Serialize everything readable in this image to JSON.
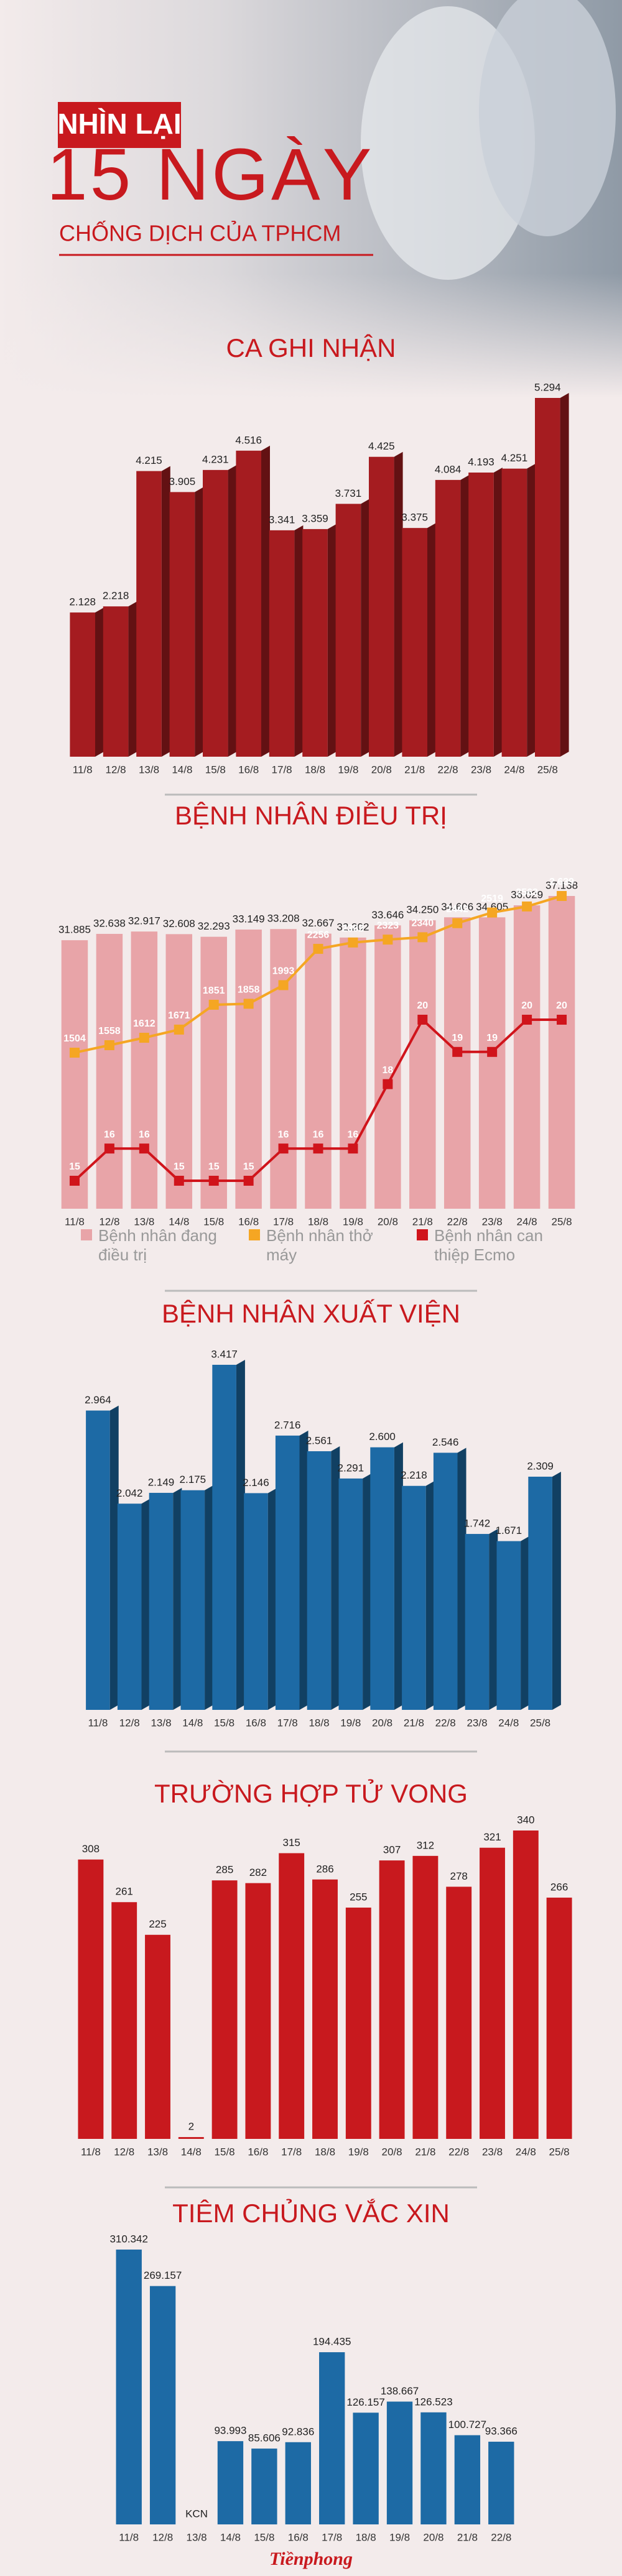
{
  "header": {
    "kicker": "NHÌN LẠI",
    "title": "15 NGÀY",
    "subtitle": "CHỐNG DỊCH CỦA TPHCM"
  },
  "chart_data": [
    {
      "type": "bar",
      "title": "CA GHI NHẬN",
      "color": "#a51c20",
      "categories": [
        "11/8",
        "12/8",
        "13/8",
        "14/8",
        "15/8",
        "16/8",
        "17/8",
        "18/8",
        "19/8",
        "20/8",
        "21/8",
        "22/8",
        "23/8",
        "24/8",
        "25/8"
      ],
      "values": [
        2128,
        2218,
        4215,
        3905,
        4231,
        4516,
        3341,
        3359,
        3731,
        4425,
        3375,
        4084,
        4193,
        4251,
        5294
      ],
      "value_labels": [
        "2.128",
        "2.218",
        "4.215",
        "3.905",
        "4.231",
        "4.516",
        "3.341",
        "3.359",
        "3.731",
        "4.425",
        "3.375",
        "4.084",
        "4.193",
        "4.251",
        "5.294"
      ]
    },
    {
      "type": "combo",
      "title": "BỆNH NHÂN ĐIỀU TRỊ",
      "categories": [
        "11/8",
        "12/8",
        "13/8",
        "14/8",
        "15/8",
        "16/8",
        "17/8",
        "18/8",
        "19/8",
        "20/8",
        "21/8",
        "22/8",
        "23/8",
        "24/8",
        "25/8"
      ],
      "series": [
        {
          "name": "Bệnh nhân đang điều trị",
          "type": "bar",
          "color": "#e8a4a8",
          "values": [
            31885,
            32638,
            32917,
            32608,
            32293,
            33149,
            33208,
            32667,
            32202,
            33646,
            34250,
            34606,
            34605,
            36029,
            37138
          ],
          "value_labels": [
            "31.885",
            "32.638",
            "32.917",
            "32.608",
            "32.293",
            "33.149",
            "33.208",
            "32.667",
            "32.202",
            "33.646",
            "34.250",
            "34.606",
            "34.605",
            "36.029",
            "37.138"
          ]
        },
        {
          "name": "Bệnh nhân thở máy",
          "type": "line",
          "color": "#f5a623",
          "values": [
            1504,
            1558,
            1612,
            1671,
            1851,
            1858,
            1993,
            2256,
            2302,
            2323,
            2340,
            2442,
            2519,
            2563,
            2639
          ],
          "value_labels": [
            "1504",
            "1558",
            "1612",
            "1671",
            "1851",
            "1858",
            "1993",
            "2256",
            "2302",
            "2323",
            "2340",
            "2442",
            "2519",
            "2563",
            "2.639"
          ]
        },
        {
          "name": "Bệnh nhân can thiệp Ecmo",
          "type": "line",
          "color": "#d0141b",
          "values": [
            15,
            16,
            16,
            15,
            15,
            15,
            16,
            16,
            16,
            18,
            20,
            19,
            19,
            20,
            20
          ]
        }
      ]
    },
    {
      "type": "bar",
      "title": "BỆNH NHÂN XUẤT VIỆN",
      "color": "#1d6aa5",
      "categories": [
        "11/8",
        "12/8",
        "13/8",
        "14/8",
        "15/8",
        "16/8",
        "17/8",
        "18/8",
        "19/8",
        "20/8",
        "21/8",
        "22/8",
        "23/8",
        "24/8",
        "25/8"
      ],
      "values": [
        2964,
        2042,
        2149,
        2175,
        3417,
        2146,
        2716,
        2561,
        2291,
        2600,
        2218,
        2546,
        1742,
        1671,
        2309
      ],
      "value_labels": [
        "2.964",
        "2.042",
        "2.149",
        "2.175",
        "3.417",
        "2.146",
        "2.716",
        "2.561",
        "2.291",
        "2.600",
        "2.218",
        "2.546",
        "1.742",
        "1.671",
        "2.309"
      ]
    },
    {
      "type": "bar",
      "title": "TRƯỜNG HỢP TỬ VONG",
      "color": "#c8191e",
      "categories": [
        "11/8",
        "12/8",
        "13/8",
        "14/8",
        "15/8",
        "16/8",
        "17/8",
        "18/8",
        "19/8",
        "20/8",
        "21/8",
        "22/8",
        "23/8",
        "24/8",
        "25/8"
      ],
      "values": [
        308,
        261,
        225,
        2,
        285,
        282,
        315,
        286,
        255,
        307,
        312,
        278,
        321,
        340,
        266
      ]
    },
    {
      "type": "bar",
      "title": "TIÊM CHỦNG VẮC XIN",
      "color": "#1d6aa5",
      "categories": [
        "11/8",
        "12/8",
        "13/8",
        "14/8",
        "15/8",
        "16/8",
        "17/8",
        "18/8",
        "19/8",
        "20/8",
        "21/8",
        "22/8"
      ],
      "values": [
        310342,
        269157,
        null,
        93993,
        85606,
        92836,
        194435,
        126157,
        138667,
        126523,
        100727,
        93366
      ],
      "value_labels": [
        "310.342",
        "269.157",
        "KCN",
        "93.993",
        "85.606",
        "92.836",
        "194.435",
        "126.157",
        "138.667",
        "126.523",
        "100.727",
        "93.366"
      ]
    }
  ],
  "footer": {
    "logo": "Tiềnphong"
  }
}
